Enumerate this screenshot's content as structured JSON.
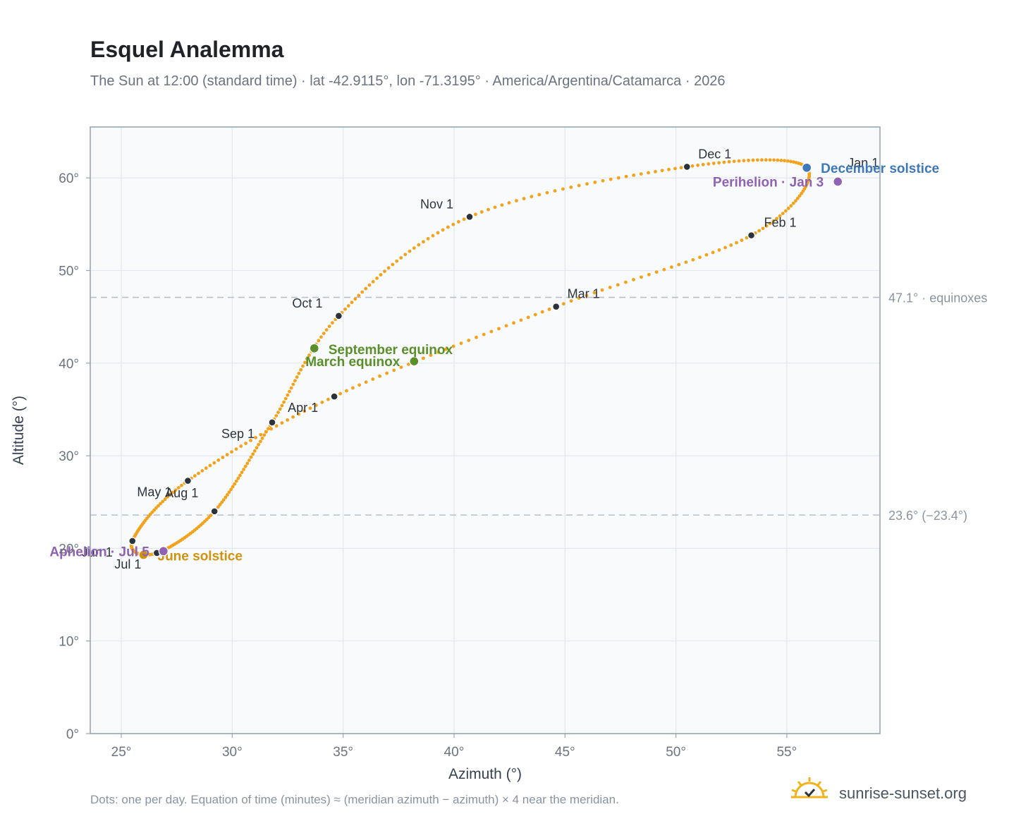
{
  "header": {
    "title": "Esquel Analemma",
    "subtitle": "The Sun at 12:00 (standard time) · lat -42.9115°, lon -71.3195° · America/Argentina/Catamarca · 2026"
  },
  "footer": {
    "note": "Dots: one per day. Equation of time (minutes) ≈ (meridian azimuth − azimuth) × 4 near the meridian."
  },
  "brand": {
    "name": "sunrise-sunset.org",
    "icon": "sun-logo-icon"
  },
  "colors": {
    "curve": "#f2a31b",
    "month_marker": "#2b333d",
    "december_solstice": "#3d78b8",
    "june_solstice": "#d1920f",
    "equinox": "#5a8f2a",
    "apsis": "#8f62b4",
    "reference_line": "#b7c0ca",
    "plot_background": "#f8fafc",
    "grid": "#e3e8ee",
    "frame": "#9aa5b4"
  },
  "chart_data": {
    "type": "scatter",
    "title": "Esquel Analemma",
    "subtitle": "The Sun at 12:00 (standard time) · lat -42.9115°, lon -71.3195° · America/Argentina/Catamarca · 2026",
    "xlabel": "Azimuth (°)",
    "ylabel": "Altitude (°)",
    "xlim": [
      23.6,
      59.2
    ],
    "ylim": [
      0,
      65.5
    ],
    "xticks": [
      25,
      30,
      35,
      40,
      45,
      50,
      55
    ],
    "xtick_labels": [
      "25°",
      "30°",
      "35°",
      "40°",
      "45°",
      "50°",
      "55°"
    ],
    "yticks": [
      0,
      10,
      20,
      30,
      40,
      50,
      60
    ],
    "ytick_labels": [
      "0°",
      "10°",
      "20°",
      "30°",
      "40°",
      "50°",
      "60°"
    ],
    "grid": true,
    "daily_points_note": "one point per day, 2026",
    "month_markers": [
      {
        "label": "Jan 1",
        "az": 55.9,
        "alt": 61.1
      },
      {
        "label": "Feb 1",
        "az": 53.4,
        "alt": 53.8
      },
      {
        "label": "Mar 1",
        "az": 44.6,
        "alt": 46.1
      },
      {
        "label": "Apr 1",
        "az": 34.6,
        "alt": 36.4
      },
      {
        "label": "May 1",
        "az": 28.0,
        "alt": 27.3
      },
      {
        "label": "Jun 1",
        "az": 25.5,
        "alt": 20.8
      },
      {
        "label": "Jul 1",
        "az": 26.6,
        "alt": 19.5
      },
      {
        "label": "Aug 1",
        "az": 29.2,
        "alt": 24.0
      },
      {
        "label": "Sep 1",
        "az": 31.8,
        "alt": 33.6
      },
      {
        "label": "Oct 1",
        "az": 34.8,
        "alt": 45.1
      },
      {
        "label": "Nov 1",
        "az": 40.7,
        "alt": 55.8
      },
      {
        "label": "Dec 1",
        "az": 50.5,
        "alt": 61.2
      }
    ],
    "events": [
      {
        "label": "December solstice",
        "az": 55.9,
        "alt": 61.1,
        "color": "#3d78b8"
      },
      {
        "label": "Perihelion · Jan 3",
        "az": 57.3,
        "alt": 59.6,
        "color": "#8f62b4"
      },
      {
        "label": "March equinox",
        "az": 38.2,
        "alt": 40.2,
        "color": "#5a8f2a"
      },
      {
        "label": "September equinox",
        "az": 33.7,
        "alt": 41.6,
        "color": "#5a8f2a"
      },
      {
        "label": "June solstice",
        "az": 26.0,
        "alt": 19.3,
        "color": "#d1920f"
      },
      {
        "label": "Aphelion · Jul 5",
        "az": 26.9,
        "alt": 19.7,
        "color": "#8f62b4"
      }
    ],
    "reference_lines": [
      {
        "alt": 47.1,
        "label": "47.1° · equinoxes"
      },
      {
        "alt": 23.6,
        "label": "23.6° (−23.4°)"
      }
    ]
  }
}
